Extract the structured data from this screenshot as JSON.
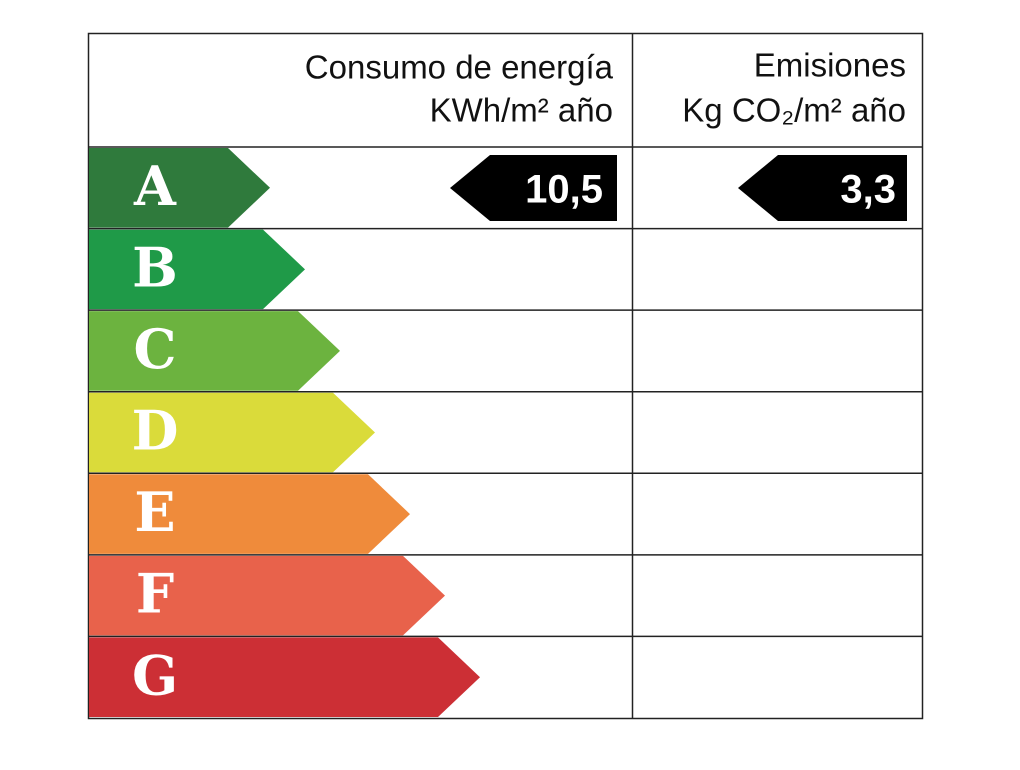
{
  "header": {
    "energy_title": "Consumo de energía",
    "energy_unit": "KWh/m² año",
    "emissions_title": "Emisiones",
    "emissions_unit": "Kg CO₂/m² año"
  },
  "ratings": [
    "A",
    "B",
    "C",
    "D",
    "E",
    "F",
    "G"
  ],
  "energy_value": "10,5",
  "emissions_value": "3,3"
}
